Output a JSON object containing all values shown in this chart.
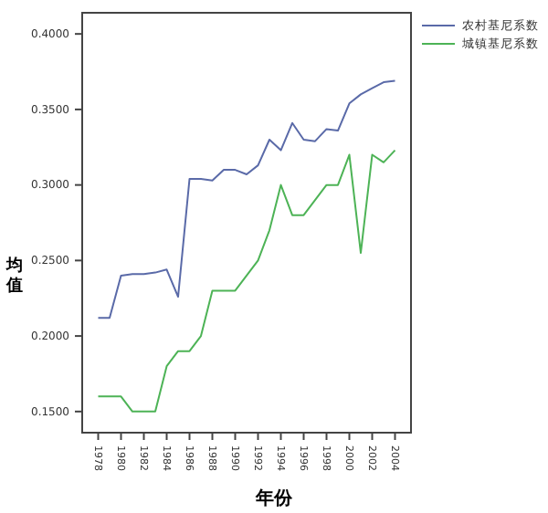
{
  "chart_data": {
    "type": "line",
    "xlabel": "年份",
    "ylabel": "均值",
    "x": [
      1978,
      1979,
      1980,
      1981,
      1982,
      1983,
      1984,
      1985,
      1986,
      1987,
      1988,
      1989,
      1990,
      1991,
      1992,
      1993,
      1994,
      1995,
      1996,
      1997,
      1998,
      1999,
      2000,
      2001,
      2002,
      2003,
      2004
    ],
    "xlim": [
      1976.6,
      2005.4
    ],
    "xticks": [
      {
        "value": 1978,
        "label": "1978"
      },
      {
        "value": 1980,
        "label": "1980"
      },
      {
        "value": 1982,
        "label": "1982"
      },
      {
        "value": 1984,
        "label": "1984"
      },
      {
        "value": 1986,
        "label": "1986"
      },
      {
        "value": 1988,
        "label": "1988"
      },
      {
        "value": 1990,
        "label": "1990"
      },
      {
        "value": 1992,
        "label": "1992"
      },
      {
        "value": 1994,
        "label": "1994"
      },
      {
        "value": 1996,
        "label": "1996"
      },
      {
        "value": 1998,
        "label": "1998"
      },
      {
        "value": 2000,
        "label": "2000"
      },
      {
        "value": 2002,
        "label": "2002"
      },
      {
        "value": 2004,
        "label": "2004"
      }
    ],
    "ylim": [
      0.136,
      0.414
    ],
    "yticks": [
      {
        "value": 0.15,
        "label": "0.1500"
      },
      {
        "value": 0.2,
        "label": "0.2000"
      },
      {
        "value": 0.25,
        "label": "0.2500"
      },
      {
        "value": 0.3,
        "label": "0.3000"
      },
      {
        "value": 0.35,
        "label": "0.3500"
      },
      {
        "value": 0.4,
        "label": "0.4000"
      }
    ],
    "legend": "top right",
    "grid": false,
    "marker": "none",
    "line_style": "solid",
    "series": [
      {
        "name": "农村基尼系数",
        "color": "#5a6aa8",
        "values": [
          0.212,
          0.212,
          0.24,
          0.241,
          0.241,
          0.242,
          0.244,
          0.226,
          0.304,
          0.304,
          0.303,
          0.31,
          0.31,
          0.307,
          0.313,
          0.33,
          0.323,
          0.341,
          0.33,
          0.329,
          0.337,
          0.336,
          0.354,
          0.36,
          0.364,
          0.368,
          0.369
        ]
      },
      {
        "name": "城镇基尼系数",
        "color": "#4db356",
        "values": [
          0.16,
          0.16,
          0.16,
          0.15,
          0.15,
          0.15,
          0.18,
          0.19,
          0.19,
          0.2,
          0.23,
          0.23,
          0.23,
          0.24,
          0.25,
          0.27,
          0.3,
          0.28,
          0.28,
          0.29,
          0.3,
          0.3,
          0.32,
          0.255,
          0.32,
          0.315,
          0.323
        ]
      }
    ]
  }
}
